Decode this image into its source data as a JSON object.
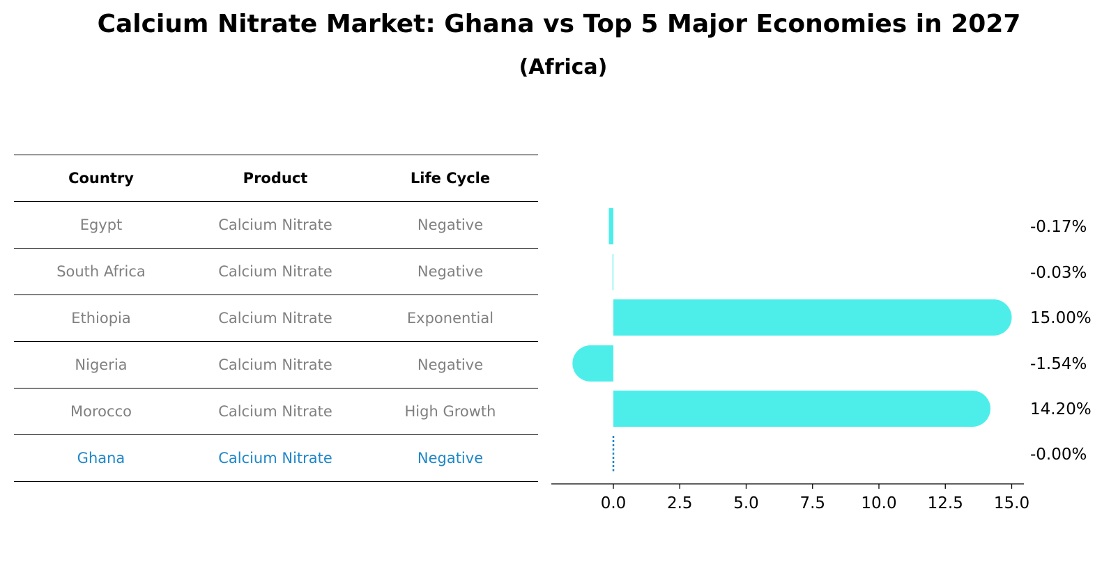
{
  "title": "Calcium Nitrate Market: Ghana vs Top 5 Major Economies in 2027",
  "subtitle": "(Africa)",
  "colors": {
    "bar": "#4deeea",
    "highlight": "#1f87c8",
    "muted_text": "#808080"
  },
  "table": {
    "headers": [
      "Country",
      "Product",
      "Life Cycle"
    ],
    "rows": [
      {
        "country": "Egypt",
        "product": "Calcium Nitrate",
        "life_cycle": "Negative"
      },
      {
        "country": "South Africa",
        "product": "Calcium Nitrate",
        "life_cycle": "Negative"
      },
      {
        "country": "Ethiopia",
        "product": "Calcium Nitrate",
        "life_cycle": "Exponential"
      },
      {
        "country": "Nigeria",
        "product": "Calcium Nitrate",
        "life_cycle": "Negative"
      },
      {
        "country": "Morocco",
        "product": "Calcium Nitrate",
        "life_cycle": "High Growth"
      },
      {
        "country": "Ghana",
        "product": "Calcium Nitrate",
        "life_cycle": "Negative"
      }
    ]
  },
  "chart_data": {
    "type": "bar",
    "orientation": "horizontal",
    "categories": [
      "Egypt",
      "South Africa",
      "Ethiopia",
      "Nigeria",
      "Morocco",
      "Ghana"
    ],
    "values": [
      -0.17,
      -0.03,
      15.0,
      -1.54,
      14.2,
      -0.0
    ],
    "value_labels": [
      "-0.17%",
      "-0.03%",
      "15.00%",
      "-1.54%",
      "14.20%",
      "-0.00%"
    ],
    "highlight_category": "Ghana",
    "xlim": [
      -1.6,
      15.0
    ],
    "xticks": [
      0.0,
      2.5,
      5.0,
      7.5,
      10.0,
      12.5,
      15.0
    ],
    "xtick_labels": [
      "0.0",
      "2.5",
      "5.0",
      "7.5",
      "10.0",
      "12.5",
      "15.0"
    ],
    "title": "",
    "xlabel": "",
    "ylabel": ""
  }
}
